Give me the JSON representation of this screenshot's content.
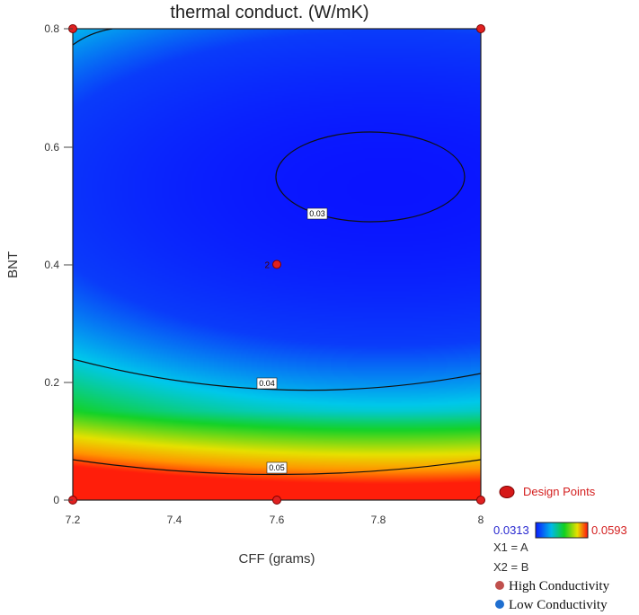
{
  "chart_data": {
    "type": "contour",
    "title": "thermal conduct. (W/mK)",
    "xlabel": "CFF (grams)",
    "ylabel": "BNT",
    "xlim": [
      7.2,
      8.0
    ],
    "ylim": [
      0.0,
      0.8
    ],
    "x_ticks": [
      "7.2",
      "7.4",
      "7.6",
      "7.8",
      "8"
    ],
    "y_ticks": [
      "0",
      "0.2",
      "0.4",
      "0.6",
      "0.8"
    ],
    "color_scale": {
      "min": "0.0313",
      "max": "0.0593",
      "colormap": "blue-cyan-green-yellow-red"
    },
    "contours": [
      {
        "label": "0.03",
        "value": 0.03
      },
      {
        "label": "0.04",
        "value": 0.04
      },
      {
        "label": "0.05",
        "value": 0.05
      }
    ],
    "design_points": [
      {
        "x": 7.2,
        "y": 0.8
      },
      {
        "x": 8.0,
        "y": 0.8
      },
      {
        "x": 7.6,
        "y": 0.4,
        "count_label": "2"
      },
      {
        "x": 7.2,
        "y": 0.0
      },
      {
        "x": 7.6,
        "y": 0.0
      },
      {
        "x": 8.0,
        "y": 0.0
      }
    ],
    "legend": {
      "design_points": "Design Points",
      "x1": "X1 = A",
      "x2": "X2 = B",
      "high": "High Conductivity",
      "low": "Low Conductivity"
    },
    "colors": {
      "design_point": "#e02020",
      "high_marker": "#c0504d",
      "low_marker": "#1f6fd0"
    }
  }
}
